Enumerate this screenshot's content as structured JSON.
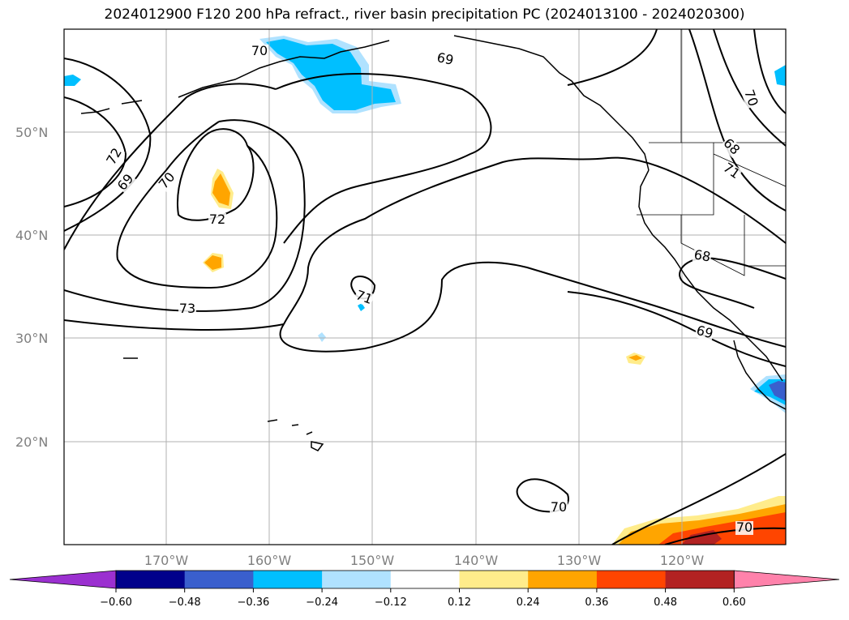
{
  "title": "2024012900 F120 200 hPa refract., river basin precipitation PC (2024013100 - 2024020300)",
  "lat_labels": [
    "50°N",
    "40°N",
    "30°N",
    "20°N"
  ],
  "lon_labels": [
    "170°W",
    "160°W",
    "150°W",
    "140°W",
    "130°W",
    "120°W"
  ],
  "colorbar": {
    "ticks": [
      "−0.60",
      "−0.48",
      "−0.36",
      "−0.24",
      "−0.12",
      "0.12",
      "0.24",
      "0.36",
      "0.48",
      "0.60"
    ],
    "colors": [
      "#9b30d0",
      "#00008b",
      "#3a5fcd",
      "#00bfff",
      "#b0e2ff",
      "#ffffff",
      "#ffec8b",
      "#ffa500",
      "#ff4500",
      "#b22222",
      "#ff82ab"
    ]
  },
  "contour_labels": [
    "70",
    "69",
    "72",
    "69",
    "70",
    "72",
    "73",
    "71",
    "68",
    "71",
    "70",
    "68",
    "69",
    "70",
    "70"
  ]
}
